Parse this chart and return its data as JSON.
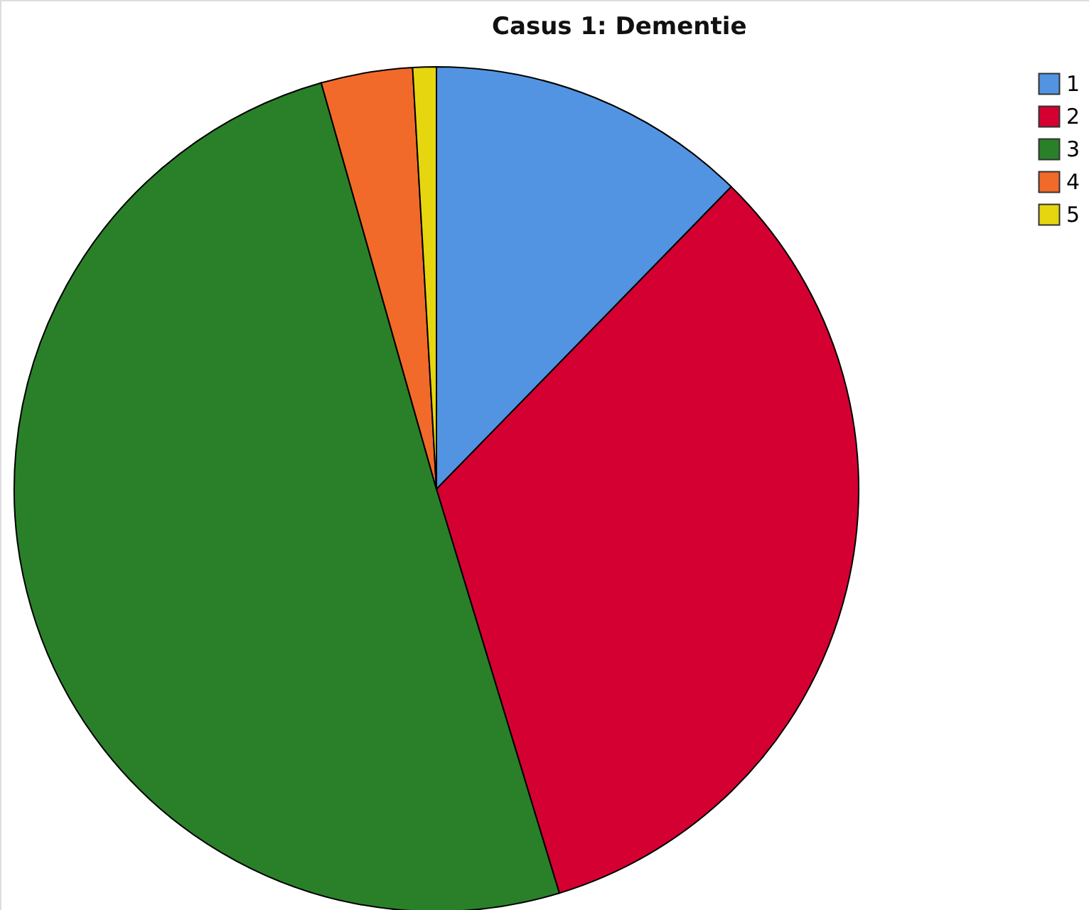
{
  "chart_data": {
    "type": "pie",
    "title": "Casus 1: Dementie",
    "categories": [
      "1",
      "2",
      "3",
      "4",
      "5"
    ],
    "values": [
      12.3,
      33.0,
      50.3,
      3.5,
      0.9
    ],
    "colors": [
      "#5294e2",
      "#d50032",
      "#2a8029",
      "#f26a2a",
      "#e6d610"
    ],
    "legend": "top right"
  }
}
